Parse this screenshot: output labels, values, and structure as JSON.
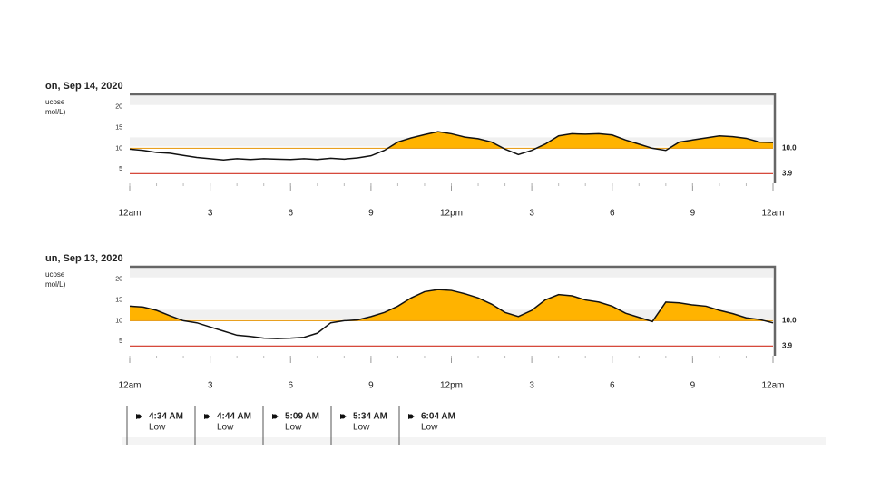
{
  "chart_data": [
    {
      "type": "line",
      "title": "on, Sep 14, 2020",
      "ylabel": [
        "ucose",
        "mol/L)"
      ],
      "x": [
        0,
        0.5,
        1,
        1.5,
        2,
        2.5,
        3,
        3.5,
        4,
        4.5,
        5,
        5.5,
        6,
        6.5,
        7,
        7.5,
        8,
        8.5,
        9,
        9.5,
        10,
        10.5,
        11,
        11.5,
        12,
        12.5,
        13,
        13.5,
        14,
        14.5,
        15,
        15.5,
        16,
        16.5,
        17,
        17.5,
        18,
        18.5,
        19,
        19.5,
        20,
        20.5,
        21,
        21.5,
        22,
        22.5,
        23,
        23.5,
        24
      ],
      "series": [
        {
          "name": "Glucose",
          "color": "#111111",
          "fill": "#ffb300",
          "values": [
            9.8,
            9.5,
            9,
            8.8,
            8.3,
            7.8,
            7.5,
            7.2,
            7.5,
            7.3,
            7.5,
            7.4,
            7.3,
            7.5,
            7.3,
            7.6,
            7.4,
            7.7,
            8.2,
            9.5,
            11.5,
            12.5,
            13.3,
            14,
            13.5,
            12.7,
            12.3,
            11.5,
            9.8,
            8.5,
            9.5,
            11,
            13,
            13.5,
            13.4,
            13.5,
            13.2,
            12,
            11,
            10,
            9.5,
            11.5,
            12,
            12.5,
            13,
            12.8,
            12.4,
            11.5,
            11.4
          ]
        }
      ],
      "thresholds": [
        {
          "value": 10,
          "label": "10.0",
          "color": "#e8a020"
        },
        {
          "value": 3.9,
          "label": "3.9",
          "color": "#d03020"
        }
      ],
      "xlim": [
        0,
        24
      ],
      "xticks": [
        {
          "value": 0,
          "label": "12am"
        },
        3,
        6,
        9,
        {
          "value": 12,
          "label": "12pm"
        },
        {
          "value": 15,
          "label": "3"
        },
        {
          "value": 18,
          "label": "6"
        },
        {
          "value": 21,
          "label": "9"
        },
        {
          "value": 24,
          "label": "12am"
        }
      ],
      "ylim": [
        2,
        23
      ],
      "yticks": [
        5,
        10,
        15,
        20
      ]
    },
    {
      "type": "line",
      "title": "un, Sep 13, 2020",
      "ylabel": [
        "ucose",
        "mol/L)"
      ],
      "x": [
        0,
        0.5,
        1,
        1.5,
        2,
        2.5,
        3,
        3.5,
        4,
        4.5,
        5,
        5.5,
        6,
        6.5,
        7,
        7.5,
        8,
        8.5,
        9,
        9.5,
        10,
        10.5,
        11,
        11.5,
        12,
        12.5,
        13,
        13.5,
        14,
        14.5,
        15,
        15.5,
        16,
        16.5,
        17,
        17.5,
        18,
        18.5,
        19,
        19.5,
        20,
        20.5,
        21,
        21.5,
        22,
        22.5,
        23,
        23.5,
        24
      ],
      "series": [
        {
          "name": "Glucose",
          "color": "#111111",
          "fill": "#ffb300",
          "values": [
            13.5,
            13.3,
            12.5,
            11.2,
            10,
            9.5,
            8.5,
            7.5,
            6.5,
            6.2,
            5.8,
            5.7,
            5.8,
            6,
            7,
            9.5,
            10,
            10.2,
            11,
            12,
            13.5,
            15.5,
            17,
            17.5,
            17.3,
            16.5,
            15.5,
            14,
            12,
            11,
            12.5,
            15,
            16.3,
            16,
            15,
            14.5,
            13.5,
            11.8,
            10.8,
            9.8,
            14.5,
            14.3,
            13.8,
            13.5,
            12.5,
            11.7,
            10.7,
            10.3,
            9.5
          ]
        }
      ],
      "thresholds": [
        {
          "value": 10,
          "label": "10.0",
          "color": "#e8a020"
        },
        {
          "value": 3.9,
          "label": "3.9",
          "color": "#d03020"
        }
      ],
      "xlim": [
        0,
        24
      ],
      "xticks": [
        {
          "value": 0,
          "label": "12am"
        },
        3,
        6,
        9,
        {
          "value": 12,
          "label": "12pm"
        },
        {
          "value": 15,
          "label": "3"
        },
        {
          "value": 18,
          "label": "6"
        },
        {
          "value": 21,
          "label": "9"
        },
        {
          "value": 24,
          "label": "12am"
        }
      ],
      "ylim": [
        2,
        23
      ],
      "yticks": [
        5,
        10,
        15,
        20
      ]
    }
  ],
  "events": [
    {
      "time": "4:34 AM",
      "label": "Low"
    },
    {
      "time": "4:44 AM",
      "label": "Low"
    },
    {
      "time": "5:09 AM",
      "label": "Low"
    },
    {
      "time": "5:34 AM",
      "label": "Low"
    },
    {
      "time": "6:04 AM",
      "label": "Low"
    }
  ]
}
